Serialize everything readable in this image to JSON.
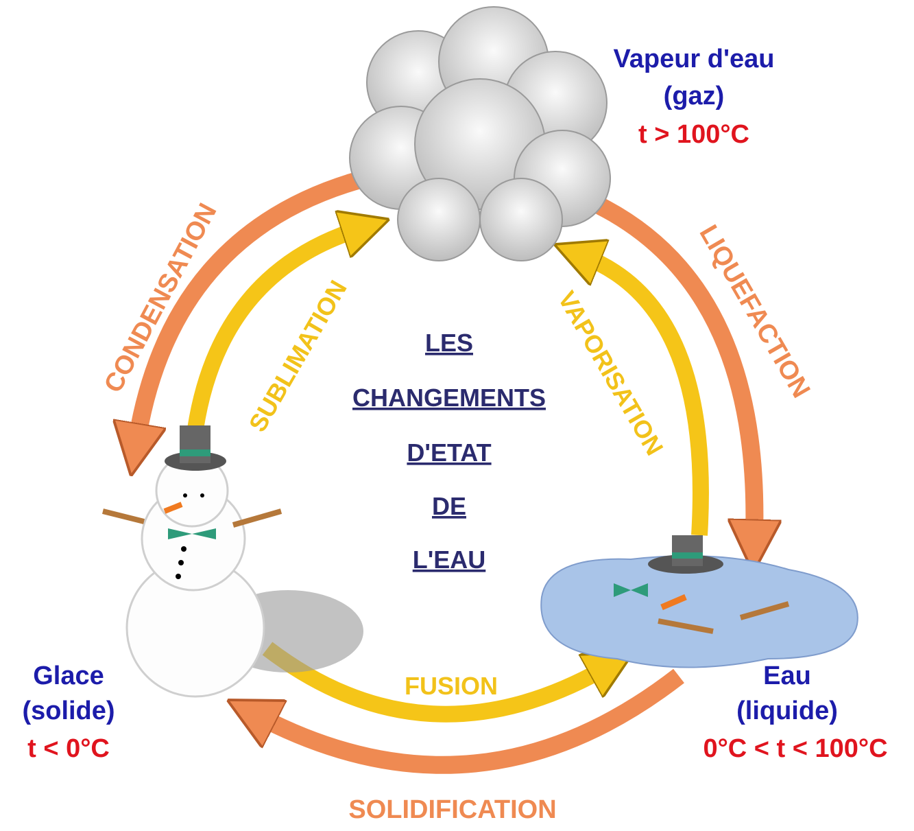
{
  "title": {
    "lines": [
      "LES",
      "CHANGEMENTS",
      "D'ETAT",
      "DE",
      "L'EAU"
    ]
  },
  "states": [
    {
      "name": "Vapeur d'eau",
      "phase": "(gaz)",
      "temperature": "t > 100°C"
    },
    {
      "name": "Glace",
      "phase": "(solide)",
      "temperature": "t < 0°C"
    },
    {
      "name": "Eau",
      "phase": "(liquide)",
      "temperature": "0°C < t < 100°C"
    }
  ],
  "transitions": [
    "CONDENSATION",
    "SUBLIMATION",
    "VAPORISATION",
    "LIQUEFACTION",
    "FUSION",
    "SOLIDIFICATION"
  ]
}
